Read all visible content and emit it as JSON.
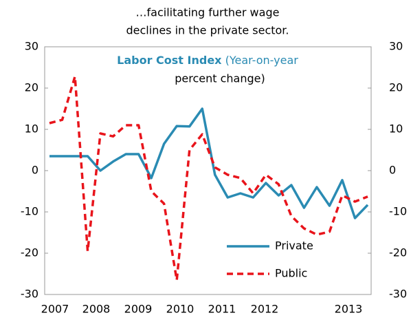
{
  "chart_data": {
    "type": "line",
    "title_lines": [
      "…facilitating further wage",
      "declines in the private sector."
    ],
    "subtitle_bold": "Labor Cost Index",
    "subtitle_lines": [
      "(Year-on-year",
      "percent change)"
    ],
    "xticks": [
      2007,
      2008,
      2009,
      2010,
      2011,
      2012,
      2013
    ],
    "series": [
      {
        "name": "Private",
        "color": "#2a8bb3",
        "dash": false,
        "values": [
          3.5,
          3.5,
          3.5,
          3.5,
          0,
          2.2,
          4,
          4,
          -1.8,
          6.5,
          10.8,
          10.7,
          15,
          -1,
          -6.5,
          -5.5,
          -6.5,
          -3,
          -6,
          -3.5,
          -9,
          -4,
          -8.5,
          -2.3,
          -11.5,
          -8.3
        ]
      },
      {
        "name": "Public",
        "color": "#e8141b",
        "dash": true,
        "values": [
          11.5,
          12.3,
          22.8,
          -19.5,
          9,
          8.3,
          11,
          11,
          -5,
          -8,
          -26.5,
          5,
          8.8,
          0.8,
          -1,
          -1.8,
          -5.5,
          -1,
          -3.3,
          -11,
          -14,
          -15.5,
          -14.8,
          -6,
          -7.5,
          -6.3
        ]
      }
    ],
    "ylim": [
      -30,
      30
    ],
    "yticks": [
      -30,
      -20,
      -10,
      0,
      10,
      20,
      30
    ],
    "y2lim": [
      -30,
      30
    ],
    "y2ticks": [
      -30,
      -20,
      -10,
      0,
      10,
      20,
      30
    ]
  }
}
